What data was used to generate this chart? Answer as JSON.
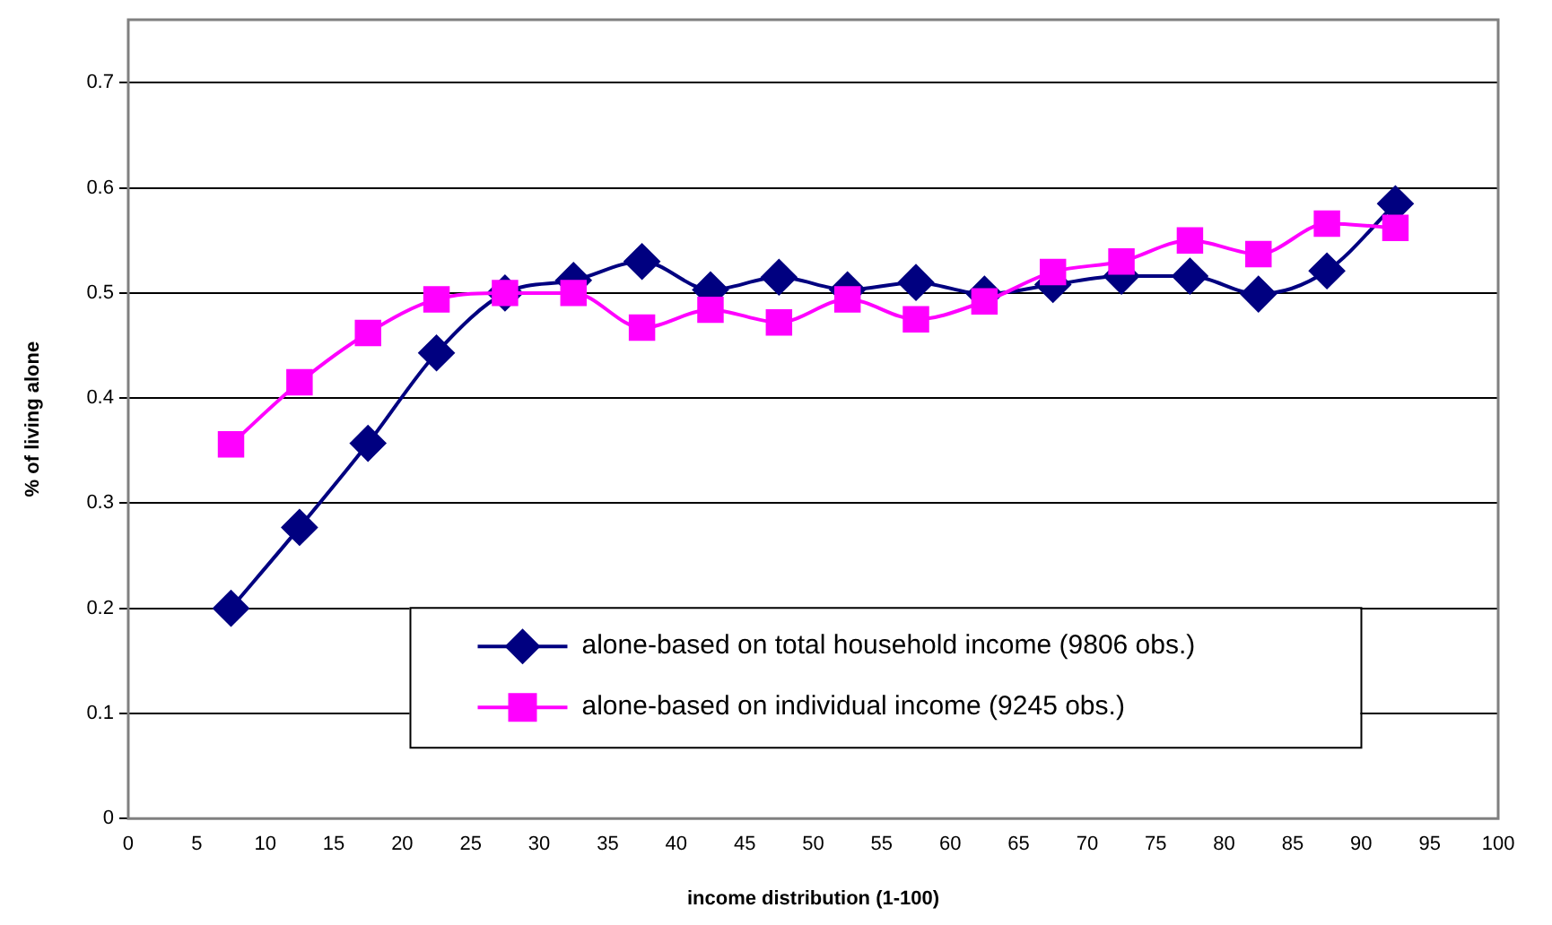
{
  "chart_data": {
    "type": "line",
    "xlabel": "income distribution (1-100)",
    "ylabel": "% of living alone",
    "x": [
      7.5,
      12.5,
      17.5,
      22.5,
      27.5,
      32.5,
      37.5,
      42.5,
      47.5,
      52.5,
      57.5,
      62.5,
      67.5,
      72.5,
      77.5,
      82.5,
      87.5,
      92.5
    ],
    "series": [
      {
        "name": "alone-based on total household income (9806 obs.)",
        "color": "#000080",
        "marker": "diamond",
        "values": [
          0.2,
          0.277,
          0.357,
          0.443,
          0.5,
          0.512,
          0.53,
          0.503,
          0.515,
          0.503,
          0.51,
          0.499,
          0.508,
          0.516,
          0.516,
          0.499,
          0.521,
          0.585
        ]
      },
      {
        "name": "alone-based on individual income (9245 obs.)",
        "color": "#ff00ff",
        "marker": "square",
        "values": [
          0.356,
          0.415,
          0.462,
          0.494,
          0.5,
          0.5,
          0.467,
          0.484,
          0.472,
          0.494,
          0.475,
          0.492,
          0.52,
          0.53,
          0.55,
          0.537,
          0.566,
          0.562
        ]
      }
    ],
    "xlim": [
      0,
      100
    ],
    "xticks": [
      0,
      5,
      10,
      15,
      20,
      25,
      30,
      35,
      40,
      45,
      50,
      55,
      60,
      65,
      70,
      75,
      80,
      85,
      90,
      95,
      100
    ],
    "ylim": [
      0,
      0.76
    ],
    "yticks": [
      0,
      0.1,
      0.2,
      0.3,
      0.4,
      0.5,
      0.6,
      0.7
    ],
    "grid": "y",
    "legend": "bottom",
    "line_style": "solid"
  }
}
